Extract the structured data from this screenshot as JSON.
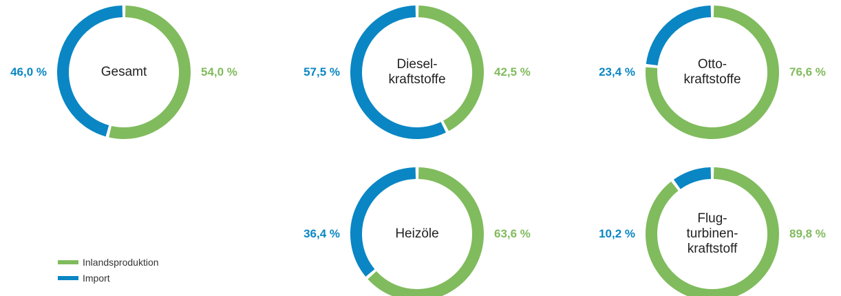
{
  "chart_data": [
    {
      "type": "donut",
      "title": "Gesamt",
      "values": [
        54.0,
        46.0
      ],
      "value_labels": [
        "54,0 %",
        "46,0 %"
      ]
    },
    {
      "type": "donut",
      "title": "Diesel-\nkraftstoffe",
      "values": [
        42.5,
        57.5
      ],
      "value_labels": [
        "42,5 %",
        "57,5 %"
      ]
    },
    {
      "type": "donut",
      "title": "Otto-\nkraftstoffe",
      "values": [
        76.6,
        23.4
      ],
      "value_labels": [
        "76,6 %",
        "23,4 %"
      ]
    },
    {
      "type": "donut",
      "title": "Heizöle",
      "values": [
        63.6,
        36.4
      ],
      "value_labels": [
        "63,6 %",
        "36,4 %"
      ]
    },
    {
      "type": "donut",
      "title": "Flug-\nturbinen-\nkraftstoff",
      "values": [
        89.8,
        10.2
      ],
      "value_labels": [
        "89,8 %",
        "10,2 %"
      ]
    }
  ],
  "legend": {
    "items": [
      {
        "name": "Inlandsproduktion",
        "color": "#80bb5d"
      },
      {
        "name": "Import",
        "color": "#0a86c4"
      }
    ]
  }
}
